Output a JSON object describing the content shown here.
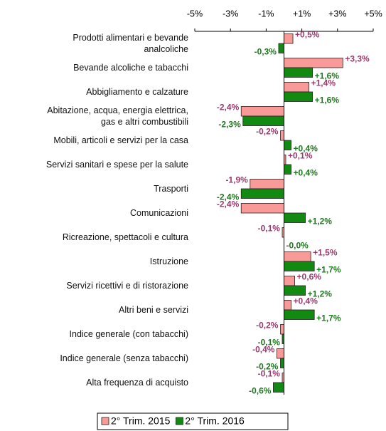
{
  "chart_data": {
    "type": "bar",
    "orientation": "horizontal",
    "categories": [
      "Prodotti alimentari e bevande\nanalcoliche",
      "Bevande alcoliche e tabacchi",
      "Abbigliamento e calzature",
      "Abitazione, acqua, energia elettrica,\ngas e altri combustibili",
      "Mobili, articoli e servizi per la casa",
      "Servizi sanitari e spese per la salute",
      "Trasporti",
      "Comunicazioni",
      "Ricreazione, spettacoli e cultura",
      "Istruzione",
      "Servizi ricettivi e di ristorazione",
      "Altri beni e servizi",
      "Indice generale (con tabacchi)",
      "Indice generale (senza tabacchi)",
      "Alta frequenza di acquisto"
    ],
    "series": [
      {
        "name": "2° Trim. 2015",
        "color": "#f79a98",
        "label_color": "#9c3a6e",
        "values": [
          0.5,
          3.3,
          1.4,
          -2.4,
          -0.2,
          0.1,
          -1.9,
          -2.4,
          -0.1,
          1.5,
          0.6,
          0.4,
          -0.2,
          -0.4,
          -0.1
        ],
        "value_labels": [
          "+0,5%",
          "+3,3%",
          "+1,4%",
          "-2,4%",
          "-0,2%",
          "+0,1%",
          "-1,9%",
          "-2,4%",
          "-0,1%",
          "+1,5%",
          "+0,6%",
          "+0,4%",
          "-0,2%",
          "-0,4%",
          "-0,1%"
        ]
      },
      {
        "name": "2° Trim. 2016",
        "color": "#128a12",
        "label_color": "#1e7a1e",
        "values": [
          -0.3,
          1.6,
          1.6,
          -2.3,
          0.4,
          0.4,
          -2.4,
          1.2,
          0,
          1.7,
          1.2,
          1.7,
          -0.1,
          -0.2,
          -0.6
        ],
        "value_labels": [
          "-0,3%",
          "+1,6%",
          "+1,6%",
          "-2,3%",
          "+0,4%",
          "+0,4%",
          "-2,4%",
          "+1,2%",
          "-0,0%",
          "+1,7%",
          "+1,2%",
          "+1,7%",
          "-0,1%",
          "-0,2%",
          "-0,6%"
        ]
      }
    ],
    "xlim": [
      -5,
      5
    ],
    "xticks": [
      {
        "value": -5,
        "label": "-5%"
      },
      {
        "value": -3,
        "label": "-3%"
      },
      {
        "value": -1,
        "label": "-1%"
      },
      {
        "value": 1,
        "label": "+1%"
      },
      {
        "value": 3,
        "label": "+3%"
      },
      {
        "value": 5,
        "label": "+5%"
      }
    ],
    "legend": "bottom"
  }
}
